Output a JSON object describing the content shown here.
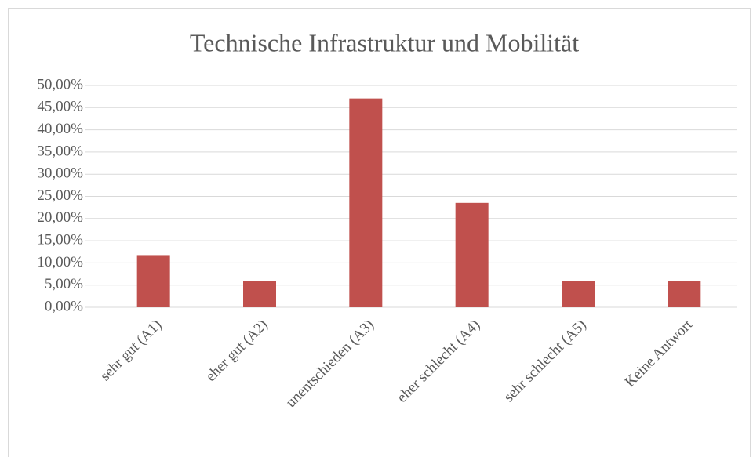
{
  "chart_data": {
    "type": "bar",
    "title": "Technische Infrastruktur und Mobilität",
    "categories": [
      "sehr gut (A1)",
      "eher gut (A2)",
      "unentschieden (A3)",
      "eher schlecht (A4)",
      "sehr schlecht (A5)",
      "Keine Antwort"
    ],
    "values": [
      11.76,
      5.88,
      47.06,
      23.53,
      5.88,
      5.88
    ],
    "color": "#c0504d",
    "ylim": [
      0,
      50
    ],
    "yticks": [
      {
        "value": 0,
        "label": "0,00%"
      },
      {
        "value": 5,
        "label": "5,00%"
      },
      {
        "value": 10,
        "label": "10,00%"
      },
      {
        "value": 15,
        "label": "15,00%"
      },
      {
        "value": 20,
        "label": "20,00%"
      },
      {
        "value": 25,
        "label": "25,00%"
      },
      {
        "value": 30,
        "label": "30,00%"
      },
      {
        "value": 35,
        "label": "35,00%"
      },
      {
        "value": 40,
        "label": "40,00%"
      },
      {
        "value": 45,
        "label": "45,00%"
      },
      {
        "value": 50,
        "label": "50,00%"
      }
    ],
    "grid": true
  }
}
